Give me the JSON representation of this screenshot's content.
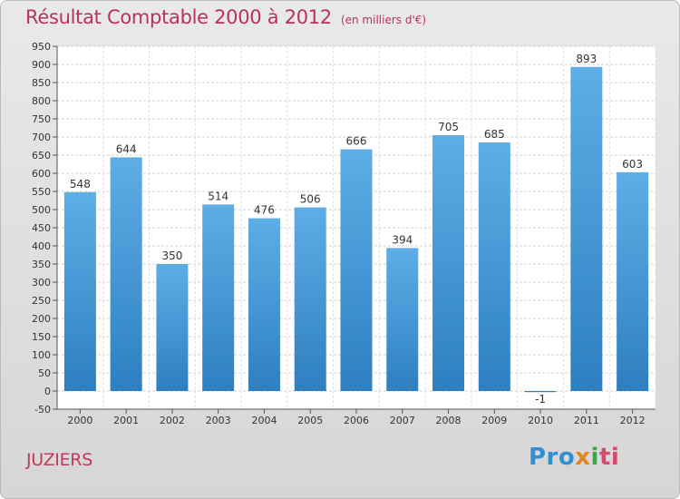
{
  "title": "Résultat Comptable 2000 à 2012",
  "subtitle": "(en milliers d'€)",
  "commune": "JUZIERS",
  "logo": {
    "p1": "Pro",
    "p2": "x",
    "p3": "i",
    "p4": "ti"
  },
  "colors": {
    "bar_top": "#5daee6",
    "bar_bottom": "#2e7fc0",
    "title": "#b7325c"
  },
  "chart_data": {
    "type": "bar",
    "title": "Résultat Comptable 2000 à 2012",
    "ylabel": "en milliers d'€",
    "xlabel": "",
    "categories": [
      "2000",
      "2001",
      "2002",
      "2003",
      "2004",
      "2005",
      "2006",
      "2007",
      "2008",
      "2009",
      "2010",
      "2011",
      "2012"
    ],
    "values": [
      548,
      644,
      350,
      514,
      476,
      506,
      666,
      394,
      705,
      685,
      -1,
      893,
      603
    ],
    "value_labels": [
      "548",
      "644",
      "350",
      "514",
      "476",
      "506",
      "666",
      "394",
      "705",
      "685",
      "-1",
      "893",
      "603"
    ],
    "ylim": [
      -50,
      950
    ],
    "yticks": [
      -50,
      0,
      50,
      100,
      150,
      200,
      250,
      300,
      350,
      400,
      450,
      500,
      550,
      600,
      650,
      700,
      750,
      800,
      850,
      900,
      950
    ],
    "grid": true
  }
}
